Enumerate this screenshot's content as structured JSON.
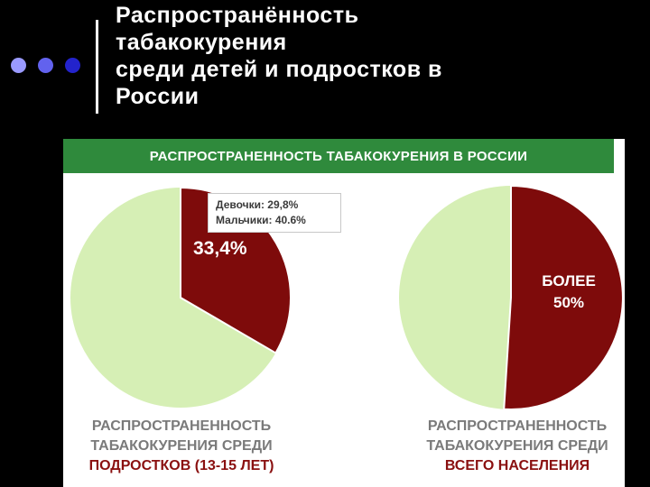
{
  "slide": {
    "title_lines": [
      "Распространённость",
      "табакокурения",
      "среди детей и подростков в",
      "России"
    ]
  },
  "decor": {
    "dot_colors": [
      "#9a9aff",
      "#6262ee",
      "#2323cc"
    ]
  },
  "colors": {
    "banner": "#2f8a3c",
    "pie_background": "#d6efb5",
    "smokers": "#7e0b0b",
    "caption_text": "#7a7a7a",
    "caption_accent": "#8a1010"
  },
  "chart_data": [
    {
      "type": "pie",
      "title": "РАСПРОСТРАНЕННОСТЬ ТАБАКОКУРЕНИЯ В РОССИИ",
      "slices": [
        {
          "label": "33,4%",
          "value": 33.4
        },
        {
          "label": "",
          "value": 66.6
        }
      ],
      "callout": [
        "Девочки: 29,8%",
        "Мальчики: 40.6%"
      ],
      "caption": [
        "РАСПРОСТРАНЕННОСТЬ",
        "ТАБАКОКУРЕНИЯ СРЕДИ",
        "ПОДРОСТКОВ (13-15 ЛЕТ)"
      ]
    },
    {
      "type": "pie",
      "slices": [
        {
          "label_lines": [
            "БОЛЕЕ",
            "50%"
          ],
          "value": 51
        },
        {
          "label": "",
          "value": 49
        }
      ],
      "caption": [
        "РАСПРОСТРАНЕННОСТЬ",
        "ТАБАКОКУРЕНИЯ СРЕДИ",
        "ВСЕГО НАСЕЛЕНИЯ"
      ]
    }
  ]
}
